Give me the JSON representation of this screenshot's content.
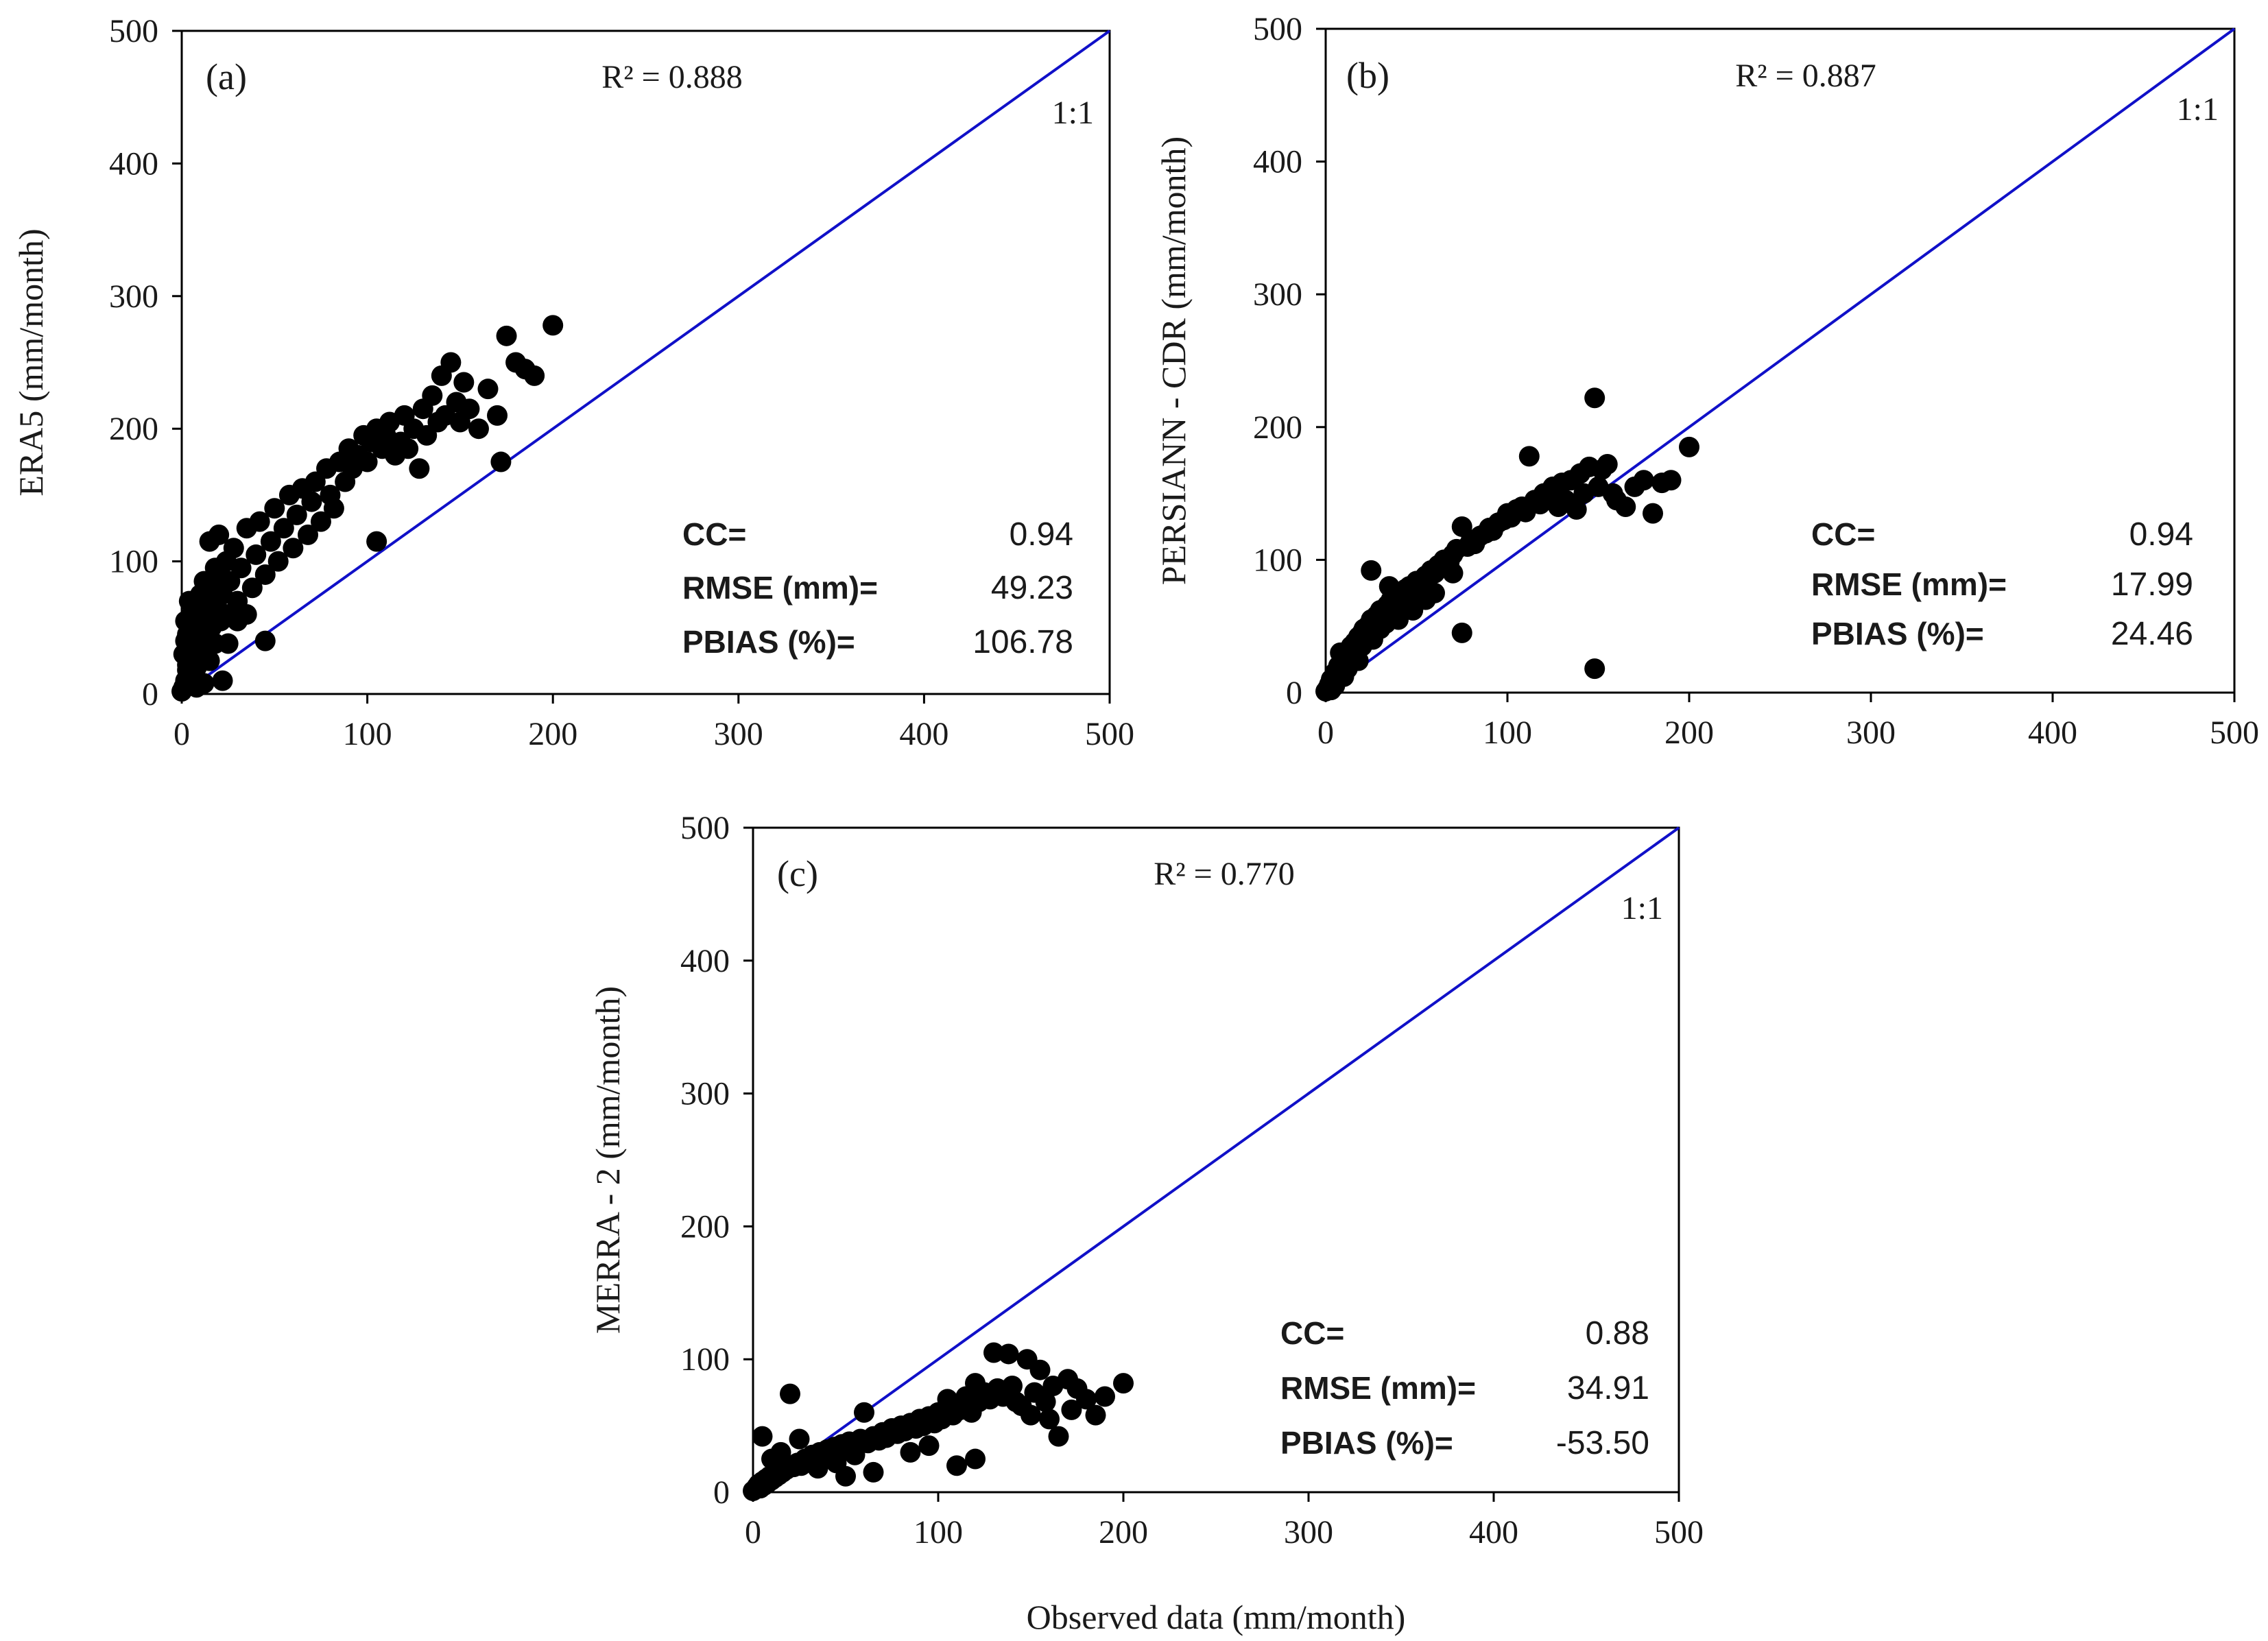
{
  "colors": {
    "reference_line": "#1010c8",
    "points": "#000000",
    "axes": "#000000"
  },
  "chart_data": [
    {
      "type": "scatter",
      "panel_label": "(a)",
      "ylabel": "ERA5 (mm/month)",
      "xlabel": "",
      "r2_text": "R² = 0.888",
      "reference_label": "1:1",
      "xlim": [
        0,
        500
      ],
      "ylim": [
        0,
        500
      ],
      "xticks": [
        "0",
        "100",
        "200",
        "300",
        "400",
        "500"
      ],
      "yticks": [
        "0",
        "100",
        "200",
        "300",
        "400",
        "500"
      ],
      "stats": [
        {
          "label": "CC=",
          "value": "0.94"
        },
        {
          "label": "RMSE (mm)=",
          "value": "49.23"
        },
        {
          "label": "PBIAS (%)=",
          "value": "106.78"
        }
      ],
      "points": [
        [
          0,
          2
        ],
        [
          1,
          5
        ],
        [
          2,
          10
        ],
        [
          3,
          18
        ],
        [
          1,
          30
        ],
        [
          2,
          40
        ],
        [
          3,
          22
        ],
        [
          4,
          28
        ],
        [
          5,
          12
        ],
        [
          6,
          35
        ],
        [
          7,
          48
        ],
        [
          8,
          20
        ],
        [
          9,
          42
        ],
        [
          10,
          55
        ],
        [
          11,
          30
        ],
        [
          12,
          60
        ],
        [
          13,
          45
        ],
        [
          14,
          70
        ],
        [
          15,
          25
        ],
        [
          16,
          50
        ],
        [
          17,
          80
        ],
        [
          18,
          38
        ],
        [
          19,
          65
        ],
        [
          20,
          90
        ],
        [
          21,
          55
        ],
        [
          22,
          75
        ],
        [
          24,
          100
        ],
        [
          25,
          60
        ],
        [
          26,
          85
        ],
        [
          28,
          110
        ],
        [
          15,
          115
        ],
        [
          20,
          120
        ],
        [
          30,
          70
        ],
        [
          32,
          95
        ],
        [
          35,
          125
        ],
        [
          38,
          80
        ],
        [
          40,
          105
        ],
        [
          42,
          130
        ],
        [
          45,
          90
        ],
        [
          45,
          40
        ],
        [
          48,
          115
        ],
        [
          50,
          140
        ],
        [
          52,
          100
        ],
        [
          55,
          125
        ],
        [
          58,
          150
        ],
        [
          60,
          110
        ],
        [
          62,
          135
        ],
        [
          65,
          155
        ],
        [
          68,
          120
        ],
        [
          70,
          145
        ],
        [
          72,
          160
        ],
        [
          75,
          130
        ],
        [
          78,
          170
        ],
        [
          80,
          150
        ],
        [
          82,
          140
        ],
        [
          85,
          175
        ],
        [
          88,
          160
        ],
        [
          90,
          185
        ],
        [
          92,
          170
        ],
        [
          95,
          180
        ],
        [
          98,
          195
        ],
        [
          100,
          175
        ],
        [
          102,
          190
        ],
        [
          105,
          200
        ],
        [
          108,
          185
        ],
        [
          105,
          115
        ],
        [
          110,
          195
        ],
        [
          112,
          205
        ],
        [
          115,
          180
        ],
        [
          118,
          190
        ],
        [
          120,
          210
        ],
        [
          122,
          185
        ],
        [
          125,
          200
        ],
        [
          128,
          170
        ],
        [
          130,
          215
        ],
        [
          132,
          195
        ],
        [
          135,
          225
        ],
        [
          138,
          205
        ],
        [
          140,
          240
        ],
        [
          142,
          210
        ],
        [
          145,
          250
        ],
        [
          148,
          220
        ],
        [
          150,
          205
        ],
        [
          152,
          235
        ],
        [
          155,
          215
        ],
        [
          160,
          200
        ],
        [
          165,
          230
        ],
        [
          170,
          210
        ],
        [
          172,
          175
        ],
        [
          175,
          270
        ],
        [
          180,
          250
        ],
        [
          185,
          245
        ],
        [
          190,
          240
        ],
        [
          200,
          278
        ],
        [
          8,
          5
        ],
        [
          12,
          8
        ],
        [
          22,
          10
        ],
        [
          5,
          20
        ],
        [
          3,
          45
        ],
        [
          2,
          55
        ],
        [
          6,
          62
        ],
        [
          4,
          70
        ],
        [
          10,
          75
        ],
        [
          12,
          85
        ],
        [
          18,
          95
        ],
        [
          8,
          58
        ],
        [
          16,
          66
        ],
        [
          25,
          38
        ],
        [
          30,
          55
        ],
        [
          35,
          60
        ]
      ]
    },
    {
      "type": "scatter",
      "panel_label": "(b)",
      "ylabel": "PERSIANN - CDR (mm/month)",
      "xlabel": "",
      "r2_text": "R² = 0.887",
      "reference_label": "1:1",
      "xlim": [
        0,
        500
      ],
      "ylim": [
        0,
        500
      ],
      "xticks": [
        "0",
        "100",
        "200",
        "300",
        "400",
        "500"
      ],
      "yticks": [
        "0",
        "100",
        "200",
        "300",
        "400",
        "500"
      ],
      "stats": [
        {
          "label": "CC=",
          "value": "0.94"
        },
        {
          "label": "RMSE (mm)=",
          "value": "17.99"
        },
        {
          "label": "PBIAS (%)=",
          "value": "24.46"
        }
      ],
      "points": [
        [
          0,
          1
        ],
        [
          1,
          3
        ],
        [
          2,
          6
        ],
        [
          3,
          10
        ],
        [
          4,
          8
        ],
        [
          5,
          15
        ],
        [
          6,
          12
        ],
        [
          7,
          20
        ],
        [
          8,
          18
        ],
        [
          9,
          25
        ],
        [
          10,
          22
        ],
        [
          11,
          28
        ],
        [
          12,
          30
        ],
        [
          13,
          26
        ],
        [
          14,
          35
        ],
        [
          15,
          32
        ],
        [
          16,
          38
        ],
        [
          17,
          34
        ],
        [
          18,
          42
        ],
        [
          19,
          40
        ],
        [
          20,
          45
        ],
        [
          21,
          48
        ],
        [
          22,
          44
        ],
        [
          23,
          50
        ],
        [
          25,
          55
        ],
        [
          26,
          52
        ],
        [
          28,
          58
        ],
        [
          30,
          62
        ],
        [
          32,
          60
        ],
        [
          34,
          66
        ],
        [
          36,
          70
        ],
        [
          38,
          68
        ],
        [
          40,
          74
        ],
        [
          42,
          72
        ],
        [
          44,
          78
        ],
        [
          46,
          80
        ],
        [
          48,
          76
        ],
        [
          50,
          84
        ],
        [
          52,
          82
        ],
        [
          55,
          88
        ],
        [
          58,
          92
        ],
        [
          60,
          90
        ],
        [
          62,
          96
        ],
        [
          65,
          100
        ],
        [
          68,
          98
        ],
        [
          70,
          104
        ],
        [
          72,
          108
        ],
        [
          75,
          125
        ],
        [
          78,
          110
        ],
        [
          80,
          115
        ],
        [
          82,
          112
        ],
        [
          85,
          118
        ],
        [
          88,
          120
        ],
        [
          90,
          124
        ],
        [
          92,
          122
        ],
        [
          95,
          128
        ],
        [
          98,
          130
        ],
        [
          100,
          135
        ],
        [
          102,
          132
        ],
        [
          105,
          138
        ],
        [
          108,
          140
        ],
        [
          110,
          136
        ],
        [
          112,
          178
        ],
        [
          115,
          145
        ],
        [
          118,
          142
        ],
        [
          120,
          150
        ],
        [
          122,
          148
        ],
        [
          125,
          155
        ],
        [
          128,
          140
        ],
        [
          130,
          158
        ],
        [
          132,
          145
        ],
        [
          135,
          160
        ],
        [
          138,
          138
        ],
        [
          140,
          165
        ],
        [
          142,
          150
        ],
        [
          145,
          170
        ],
        [
          148,
          222
        ],
        [
          150,
          155
        ],
        [
          152,
          168
        ],
        [
          155,
          172
        ],
        [
          158,
          150
        ],
        [
          160,
          145
        ],
        [
          165,
          140
        ],
        [
          170,
          155
        ],
        [
          175,
          160
        ],
        [
          180,
          135
        ],
        [
          185,
          158
        ],
        [
          190,
          160
        ],
        [
          200,
          185
        ],
        [
          148,
          18
        ],
        [
          25,
          92
        ],
        [
          8,
          30
        ],
        [
          12,
          18
        ],
        [
          20,
          35
        ],
        [
          30,
          48
        ],
        [
          40,
          55
        ],
        [
          35,
          80
        ],
        [
          45,
          65
        ],
        [
          55,
          70
        ],
        [
          60,
          75
        ],
        [
          70,
          90
        ],
        [
          5,
          5
        ],
        [
          3,
          2
        ],
        [
          10,
          12
        ],
        [
          18,
          24
        ],
        [
          26,
          40
        ],
        [
          33,
          52
        ],
        [
          48,
          62
        ],
        [
          75,
          45
        ]
      ]
    },
    {
      "type": "scatter",
      "panel_label": "(c)",
      "ylabel": "MERRA - 2 (mm/month)",
      "xlabel": "Observed data (mm/month)",
      "r2_text": "R² = 0.770",
      "reference_label": "1:1",
      "xlim": [
        0,
        500
      ],
      "ylim": [
        0,
        500
      ],
      "xticks": [
        "0",
        "100",
        "200",
        "300",
        "400",
        "500"
      ],
      "yticks": [
        "0",
        "100",
        "200",
        "300",
        "400",
        "500"
      ],
      "stats": [
        {
          "label": "CC=",
          "value": "0.88"
        },
        {
          "label": "RMSE (mm)=",
          "value": "34.91"
        },
        {
          "label": "PBIAS (%)=",
          "value": "-53.50"
        }
      ],
      "points": [
        [
          0,
          1
        ],
        [
          1,
          2
        ],
        [
          2,
          4
        ],
        [
          3,
          6
        ],
        [
          4,
          3
        ],
        [
          5,
          8
        ],
        [
          6,
          5
        ],
        [
          7,
          10
        ],
        [
          8,
          7
        ],
        [
          9,
          12
        ],
        [
          10,
          9
        ],
        [
          11,
          14
        ],
        [
          12,
          11
        ],
        [
          13,
          16
        ],
        [
          14,
          13
        ],
        [
          15,
          18
        ],
        [
          16,
          15
        ],
        [
          17,
          20
        ],
        [
          18,
          17
        ],
        [
          20,
          74
        ],
        [
          22,
          19
        ],
        [
          24,
          22
        ],
        [
          26,
          20
        ],
        [
          28,
          25
        ],
        [
          30,
          23
        ],
        [
          32,
          28
        ],
        [
          34,
          26
        ],
        [
          36,
          30
        ],
        [
          38,
          27
        ],
        [
          40,
          32
        ],
        [
          42,
          29
        ],
        [
          44,
          34
        ],
        [
          46,
          31
        ],
        [
          48,
          36
        ],
        [
          50,
          33
        ],
        [
          52,
          38
        ],
        [
          55,
          35
        ],
        [
          58,
          40
        ],
        [
          60,
          60
        ],
        [
          62,
          37
        ],
        [
          65,
          42
        ],
        [
          68,
          39
        ],
        [
          70,
          45
        ],
        [
          72,
          41
        ],
        [
          75,
          48
        ],
        [
          78,
          44
        ],
        [
          80,
          50
        ],
        [
          82,
          46
        ],
        [
          85,
          52
        ],
        [
          88,
          48
        ],
        [
          90,
          55
        ],
        [
          92,
          50
        ],
        [
          95,
          57
        ],
        [
          98,
          52
        ],
        [
          100,
          60
        ],
        [
          102,
          55
        ],
        [
          105,
          70
        ],
        [
          108,
          58
        ],
        [
          110,
          65
        ],
        [
          112,
          62
        ],
        [
          115,
          72
        ],
        [
          118,
          60
        ],
        [
          120,
          82
        ],
        [
          122,
          68
        ],
        [
          125,
          75
        ],
        [
          128,
          70
        ],
        [
          130,
          105
        ],
        [
          132,
          78
        ],
        [
          135,
          72
        ],
        [
          138,
          104
        ],
        [
          140,
          80
        ],
        [
          142,
          68
        ],
        [
          145,
          65
        ],
        [
          148,
          100
        ],
        [
          150,
          58
        ],
        [
          152,
          75
        ],
        [
          155,
          92
        ],
        [
          158,
          68
        ],
        [
          160,
          55
        ],
        [
          162,
          80
        ],
        [
          165,
          42
        ],
        [
          170,
          85
        ],
        [
          172,
          62
        ],
        [
          175,
          78
        ],
        [
          180,
          70
        ],
        [
          185,
          58
        ],
        [
          190,
          72
        ],
        [
          200,
          82
        ],
        [
          5,
          42
        ],
        [
          10,
          25
        ],
        [
          15,
          30
        ],
        [
          25,
          40
        ],
        [
          35,
          18
        ],
        [
          45,
          22
        ],
        [
          50,
          12
        ],
        [
          55,
          28
        ],
        [
          65,
          15
        ],
        [
          85,
          30
        ],
        [
          95,
          35
        ],
        [
          110,
          20
        ],
        [
          120,
          25
        ]
      ]
    }
  ]
}
